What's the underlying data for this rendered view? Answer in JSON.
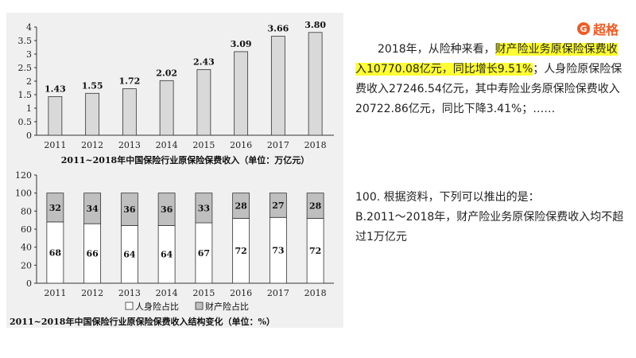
{
  "brand": {
    "logo_mark": "G",
    "name": "超格"
  },
  "passage": {
    "p1": "2018年，从险种来看，",
    "highlight": "财产险业务原保险保费收入10770.08亿元，同比增长9.51%",
    "p2": "；人身险原保险保费收入27246.54亿元，其中寿险业务原保险保费收入20722.86亿元，同比下降3.41%；……"
  },
  "question": {
    "stem": "100. 根据资料，下列可以推出的是：",
    "option_b": "B.2011～2018年，财产险业务原保险保费收入均不超过1万亿元"
  },
  "mascot_icon": "unicorn-mascot-icon",
  "chart_data": [
    {
      "type": "bar",
      "title": "2011~2018年中国保险行业原保险保费收入（单位：万亿元）",
      "categories": [
        "2011",
        "2012",
        "2013",
        "2014",
        "2015",
        "2016",
        "2017",
        "2018"
      ],
      "values": [
        1.43,
        1.55,
        1.72,
        2.02,
        2.43,
        3.09,
        3.66,
        3.8
      ],
      "value_labels": [
        "1.43",
        "1.55",
        "1.72",
        "2.02",
        "2.43",
        "3.09",
        "3.66",
        "3.80"
      ],
      "yticks": [
        "0",
        "0.5",
        "1",
        "1.5",
        "2",
        "2.5",
        "3",
        "3.5",
        "4"
      ],
      "ylim": [
        0,
        4
      ],
      "bar_color": "#d9d9d9",
      "grid": false
    },
    {
      "type": "bar",
      "stacked": true,
      "title": "2011~2018年中国保险行业原保险保费收入结构变化（单位：%）",
      "categories": [
        "2011",
        "2012",
        "2013",
        "2014",
        "2015",
        "2016",
        "2017",
        "2018"
      ],
      "series": [
        {
          "name": "人身险占比",
          "values": [
            68,
            66,
            64,
            64,
            67,
            72,
            73,
            72
          ],
          "labels": [
            "68",
            "66",
            "64",
            "64",
            "67",
            "72",
            "73",
            "72"
          ],
          "color": "#ffffff"
        },
        {
          "name": "财产险占比",
          "values": [
            32,
            34,
            36,
            36,
            33,
            28,
            27,
            28
          ],
          "labels": [
            "32",
            "34",
            "36",
            "36",
            "33",
            "28",
            "27",
            "28"
          ],
          "color": "#bfbfbf"
        }
      ],
      "yticks": [
        "0",
        "20",
        "40",
        "60",
        "80",
        "100",
        "120"
      ],
      "ylim": [
        0,
        120
      ],
      "legend_position": "bottom",
      "grid": false
    }
  ]
}
